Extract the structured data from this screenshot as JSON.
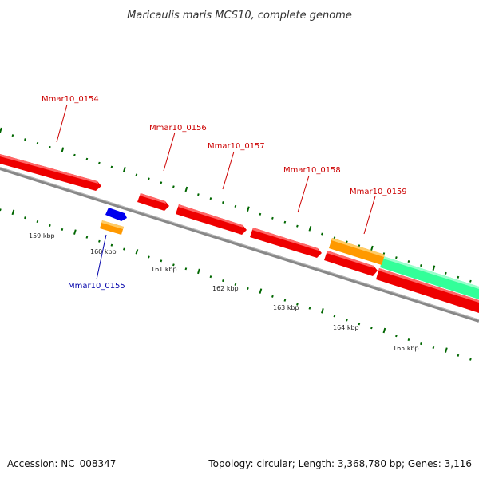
{
  "title": "Maricaulis maris MCS10, complete genome",
  "accession_text": "Accession: NC_008347",
  "topology_text": "Topology: circular; Length: 3,368,780 bp; Genes: 3,116",
  "colors": {
    "red_gene": "#ee0000",
    "orange_gene": "#ff9900",
    "blue_gene": "#0000ee",
    "green_gene": "#33ff99",
    "backbone": "#888888",
    "tick": "#006600",
    "label_red": "#cc0000",
    "label_blue": "#0000aa"
  },
  "genes": [
    {
      "name": "Mmar10_0154",
      "color": "red"
    },
    {
      "name": "Mmar10_0155",
      "color": "blue"
    },
    {
      "name": "Mmar10_0156",
      "color": "red"
    },
    {
      "name": "Mmar10_0157",
      "color": "red"
    },
    {
      "name": "Mmar10_0158",
      "color": "red"
    },
    {
      "name": "Mmar10_0159",
      "color": "red"
    }
  ],
  "kbp_labels": [
    "159 kbp",
    "160 kbp",
    "161 kbp",
    "162 kbp",
    "163 kbp",
    "164 kbp",
    "165 kbp"
  ]
}
